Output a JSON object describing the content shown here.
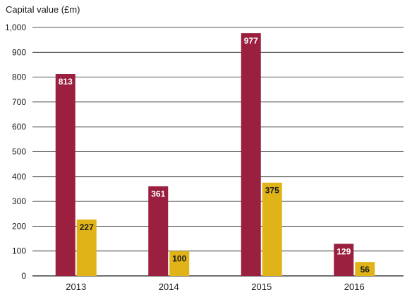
{
  "chart_data": {
    "type": "bar",
    "ylabel": "Capital value (£m)",
    "xlabel": "",
    "categories": [
      "2013",
      "2014",
      "2015",
      "2016"
    ],
    "ylim": [
      0,
      1000
    ],
    "yticks": [
      0,
      100,
      200,
      300,
      400,
      500,
      600,
      700,
      800,
      900,
      1000
    ],
    "ytick_labels": [
      "0",
      "100",
      "200",
      "300",
      "400",
      "500",
      "600",
      "700",
      "800",
      "900",
      "1,000"
    ],
    "grid": true,
    "legend": "none",
    "series": [
      {
        "color": "#9b1f3f",
        "label_color": "#ffffff",
        "values": [
          813,
          361,
          977,
          129
        ]
      },
      {
        "color": "#e0b419",
        "label_color": "#1a1a1a",
        "values": [
          227,
          100,
          375,
          56
        ]
      }
    ]
  }
}
